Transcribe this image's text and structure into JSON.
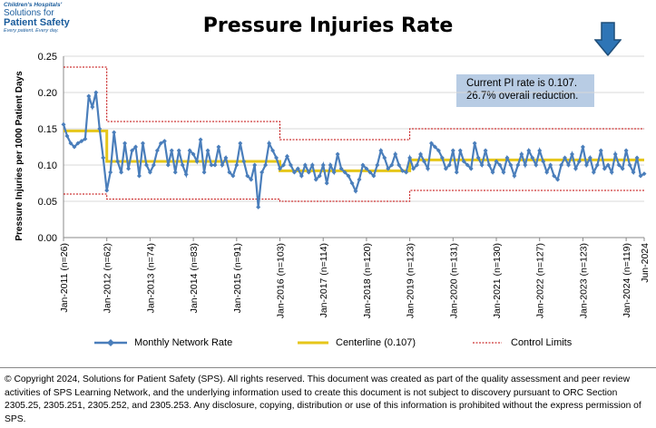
{
  "logo": {
    "line1": "Children's Hospitals'",
    "line2": "Solutions for",
    "line3": "Patient Safety",
    "line4": "Every patient. Every day."
  },
  "callout": {
    "line1": "Current PI rate is 0.107.",
    "line2": "26.7% overall reduction."
  },
  "legend": {
    "series": "Monthly Network Rate",
    "centerline": "Centerline (0.107)",
    "limits": "Control Limits"
  },
  "colors": {
    "series": "#4a7ebb",
    "centerline": "#e6c619",
    "limits": "#c00000",
    "callout_bg": "#b8cce4",
    "arrow": "#1f4e79"
  },
  "copyright": "© Copyright 2024, Solutions for Patient Safety (SPS).  All rights reserved.  This document was created as part of the quality assessment and peer review activities of SPS Learning Network, and the underlying information used to create this document is not subject to discovery pursuant to ORC Section 2305.25, 2305.251, 2305.252, and 2305.253. Any disclosure, copying, distribution or use of this information is prohibited without the express permission of SPS.",
  "chart_data": {
    "type": "line",
    "title": "Pressure Injuries Rate",
    "xlabel": "",
    "ylabel": "Pressure Injuries per 1000 Patient Days",
    "ylim": [
      0,
      0.25
    ],
    "yticks": [
      "0.00",
      "0.05",
      "0.10",
      "0.15",
      "0.20",
      "0.25"
    ],
    "x_start": "Jan-2011",
    "x_end": "Jun-2024",
    "months": 162,
    "xtick_labels": [
      "Jan-2011 (n=26)",
      "Jan-2012 (n=62)",
      "Jan-2013 (n=74)",
      "Jan-2014 (n=83)",
      "Jan-2015 (n=91)",
      "Jan-2016 (n=103)",
      "Jan-2017 (n=114)",
      "Jan-2018 (n=120)",
      "Jan-2019 (n=123)",
      "Jan-2020 (n=131)",
      "Jan-2021 (n=130)",
      "Jan-2022 (n=127)",
      "Jan-2023 (n=123)",
      "Jan-2024 (n=119)",
      "Jun-2024"
    ],
    "series": [
      {
        "name": "Monthly Network Rate",
        "values": [
          0.156,
          0.14,
          0.13,
          0.125,
          0.13,
          0.133,
          0.136,
          0.195,
          0.18,
          0.2,
          0.15,
          0.11,
          0.065,
          0.09,
          0.145,
          0.105,
          0.09,
          0.13,
          0.095,
          0.12,
          0.125,
          0.085,
          0.13,
          0.1,
          0.09,
          0.1,
          0.12,
          0.13,
          0.133,
          0.1,
          0.12,
          0.09,
          0.12,
          0.1,
          0.087,
          0.12,
          0.115,
          0.105,
          0.135,
          0.09,
          0.12,
          0.1,
          0.1,
          0.125,
          0.1,
          0.11,
          0.09,
          0.085,
          0.1,
          0.13,
          0.105,
          0.085,
          0.08,
          0.1,
          0.042,
          0.09,
          0.1,
          0.13,
          0.12,
          0.11,
          0.095,
          0.1,
          0.112,
          0.1,
          0.09,
          0.095,
          0.085,
          0.1,
          0.09,
          0.1,
          0.08,
          0.085,
          0.1,
          0.075,
          0.1,
          0.09,
          0.115,
          0.095,
          0.09,
          0.085,
          0.075,
          0.064,
          0.08,
          0.1,
          0.095,
          0.09,
          0.085,
          0.1,
          0.12,
          0.11,
          0.095,
          0.1,
          0.115,
          0.1,
          0.092,
          0.09,
          0.11,
          0.095,
          0.1,
          0.115,
          0.105,
          0.095,
          0.13,
          0.125,
          0.12,
          0.11,
          0.095,
          0.1,
          0.12,
          0.09,
          0.12,
          0.105,
          0.1,
          0.095,
          0.13,
          0.11,
          0.1,
          0.12,
          0.1,
          0.09,
          0.105,
          0.1,
          0.09,
          0.11,
          0.1,
          0.085,
          0.1,
          0.115,
          0.1,
          0.12,
          0.11,
          0.1,
          0.12,
          0.105,
          0.09,
          0.1,
          0.085,
          0.08,
          0.1,
          0.11,
          0.1,
          0.115,
          0.095,
          0.105,
          0.125,
          0.1,
          0.11,
          0.09,
          0.1,
          0.12,
          0.095,
          0.1,
          0.09,
          0.115,
          0.1,
          0.095,
          0.12,
          0.1,
          0.09,
          0.11,
          0.085,
          0.088
        ]
      },
      {
        "name": "Centerline (0.107)",
        "segments": [
          {
            "start": 0,
            "end": 12,
            "value": 0.147
          },
          {
            "start": 12,
            "end": 60,
            "value": 0.105
          },
          {
            "start": 60,
            "end": 96,
            "value": 0.092
          },
          {
            "start": 96,
            "end": 161,
            "value": 0.107
          }
        ]
      },
      {
        "name": "Control Limits",
        "upper": [
          {
            "start": 0,
            "end": 12,
            "value": 0.235
          },
          {
            "start": 12,
            "end": 60,
            "value": 0.16
          },
          {
            "start": 60,
            "end": 96,
            "value": 0.135
          },
          {
            "start": 96,
            "end": 161,
            "value": 0.15
          }
        ],
        "lower": [
          {
            "start": 0,
            "end": 12,
            "value": 0.06
          },
          {
            "start": 12,
            "end": 60,
            "value": 0.053
          },
          {
            "start": 60,
            "end": 96,
            "value": 0.05
          },
          {
            "start": 96,
            "end": 161,
            "value": 0.065
          }
        ]
      }
    ]
  }
}
